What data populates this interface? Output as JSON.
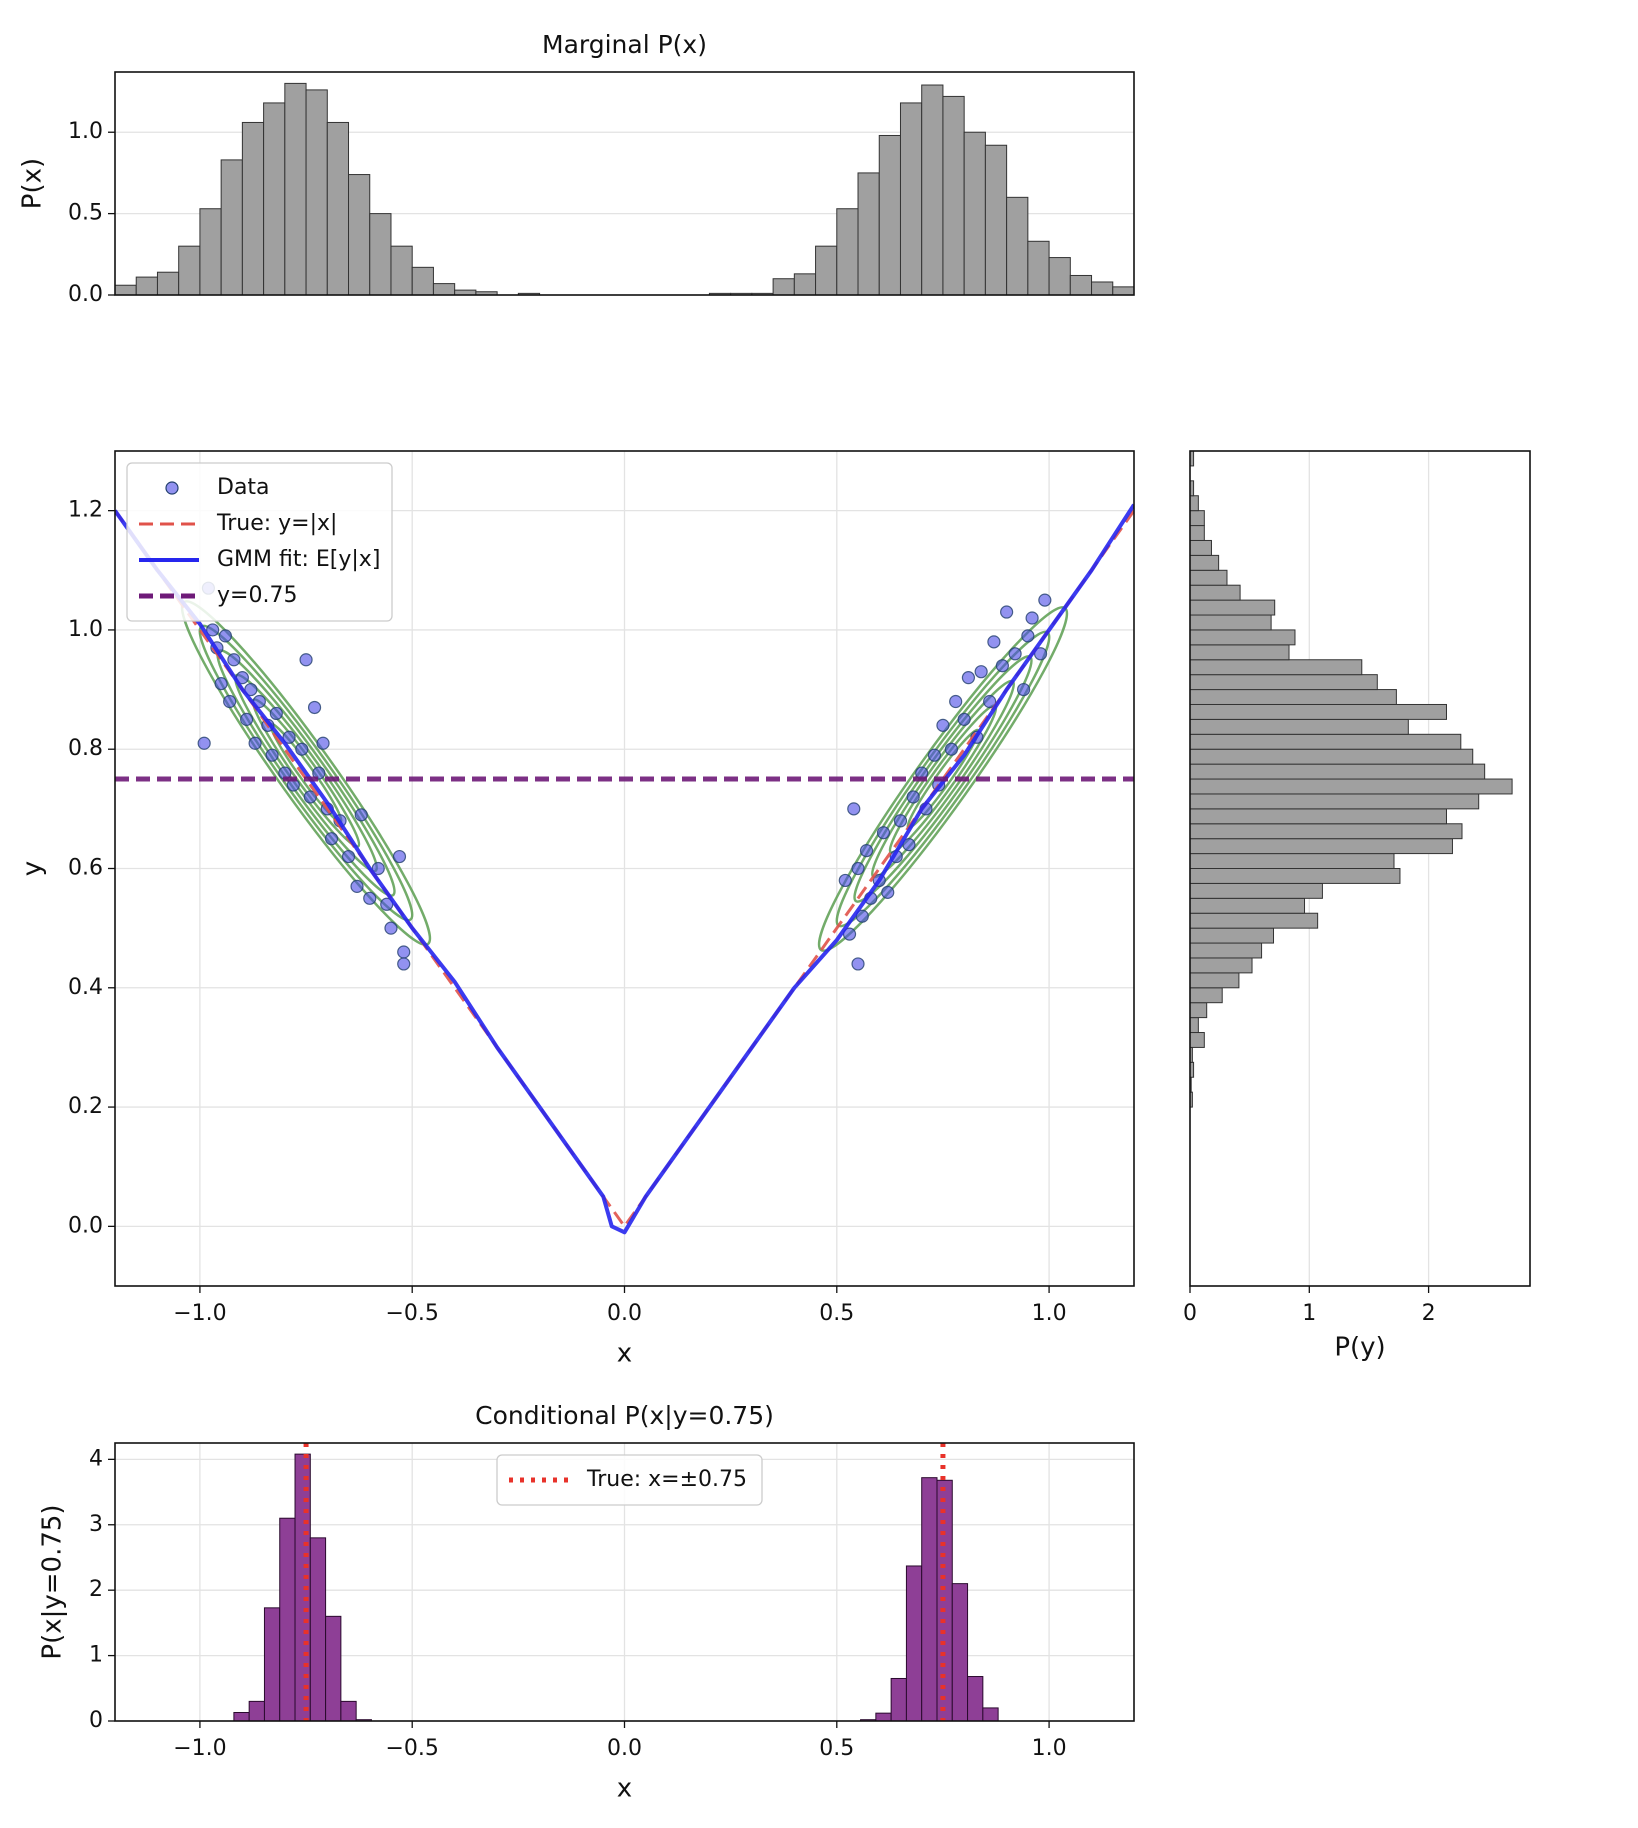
{
  "chart_data": [
    {
      "type": "histogram",
      "title": "Marginal P(x)",
      "ylabel": "P(x)",
      "orientation": "vertical",
      "color": "#a0a0a0",
      "edgecolor": "#333333",
      "grid": true,
      "xlim": [
        -1.2,
        1.2
      ],
      "ylim": [
        0,
        1.37
      ],
      "yticks": [
        {
          "value": 0,
          "label": "0.0"
        },
        {
          "value": 0.5,
          "label": "0.5"
        },
        {
          "value": 1,
          "label": "1.0"
        }
      ],
      "bins": [
        -1.2,
        -1.15,
        -1.1,
        -1.05,
        -1,
        -0.95,
        -0.9,
        -0.85,
        -0.8,
        -0.75,
        -0.7,
        -0.65,
        -0.6,
        -0.55,
        -0.5,
        -0.45,
        -0.4,
        -0.35,
        -0.3,
        -0.25,
        -0.2,
        -0.15,
        -0.1,
        -0.05,
        0,
        0.05,
        0.1,
        0.15,
        0.2,
        0.25,
        0.3,
        0.35,
        0.4,
        0.45,
        0.5,
        0.55,
        0.6,
        0.65,
        0.7,
        0.75,
        0.8,
        0.85,
        0.9,
        0.95,
        1,
        1.05,
        1.1,
        1.15,
        1.2
      ],
      "values": [
        0.06,
        0.11,
        0.14,
        0.3,
        0.53,
        0.83,
        1.06,
        1.18,
        1.3,
        1.26,
        1.06,
        0.74,
        0.5,
        0.3,
        0.17,
        0.07,
        0.03,
        0.02,
        0,
        0.01,
        0,
        0,
        0,
        0,
        0,
        0,
        0,
        0,
        0.01,
        0.01,
        0.01,
        0.1,
        0.13,
        0.3,
        0.53,
        0.75,
        0.98,
        1.18,
        1.29,
        1.22,
        1,
        0.92,
        0.6,
        0.33,
        0.23,
        0.12,
        0.08,
        0.05
      ]
    },
    {
      "type": "scatter",
      "xlabel": "x",
      "ylabel": "y",
      "grid": true,
      "legend": "upper left",
      "xlim": [
        -1.2,
        1.2
      ],
      "ylim": [
        -0.1,
        1.3
      ],
      "xticks": [
        {
          "value": -1,
          "label": "−1.0"
        },
        {
          "value": -0.5,
          "label": "−0.5"
        },
        {
          "value": 0,
          "label": "0.0"
        },
        {
          "value": 0.5,
          "label": "0.5"
        },
        {
          "value": 1,
          "label": "1.0"
        }
      ],
      "yticks": [
        {
          "value": 0,
          "label": "0.0"
        },
        {
          "value": 0.2,
          "label": "0.2"
        },
        {
          "value": 0.4,
          "label": "0.4"
        },
        {
          "value": 0.6,
          "label": "0.6"
        },
        {
          "value": 0.8,
          "label": "0.8"
        },
        {
          "value": 1,
          "label": "1.0"
        },
        {
          "value": 1.2,
          "label": "1.2"
        }
      ],
      "series": [
        {
          "name": "Data",
          "style": "markers",
          "color": "#4a4ae6",
          "x": [
            -0.98,
            -0.97,
            -0.96,
            -0.95,
            -0.94,
            -0.93,
            -0.92,
            -0.9,
            -0.89,
            -0.88,
            -0.87,
            -0.86,
            -0.84,
            -0.83,
            -0.82,
            -0.8,
            -0.79,
            -0.78,
            -0.76,
            -0.75,
            -0.74,
            -0.73,
            -0.72,
            -0.7,
            -0.69,
            -0.67,
            -0.65,
            -0.63,
            -0.62,
            -0.6,
            -0.58,
            -0.56,
            -0.55,
            -0.53,
            -0.52,
            -0.52,
            -0.99,
            -0.71,
            0.53,
            0.54,
            0.55,
            0.55,
            0.56,
            0.57,
            0.58,
            0.6,
            0.61,
            0.62,
            0.64,
            0.65,
            0.67,
            0.68,
            0.7,
            0.71,
            0.73,
            0.74,
            0.75,
            0.77,
            0.78,
            0.8,
            0.81,
            0.83,
            0.84,
            0.86,
            0.87,
            0.89,
            0.9,
            0.92,
            0.94,
            0.95,
            0.96,
            0.98,
            0.99,
            0.52
          ],
          "values": [
            1.07,
            1,
            0.97,
            0.91,
            0.99,
            0.88,
            0.95,
            0.92,
            0.85,
            0.9,
            0.81,
            0.88,
            0.84,
            0.79,
            0.86,
            0.76,
            0.82,
            0.74,
            0.8,
            0.95,
            0.72,
            0.87,
            0.76,
            0.7,
            0.65,
            0.68,
            0.62,
            0.57,
            0.69,
            0.55,
            0.6,
            0.54,
            0.5,
            0.62,
            0.46,
            0.44,
            0.81,
            0.81,
            0.49,
            0.7,
            0.6,
            0.44,
            0.52,
            0.63,
            0.55,
            0.58,
            0.66,
            0.56,
            0.62,
            0.68,
            0.64,
            0.72,
            0.76,
            0.7,
            0.79,
            0.74,
            0.84,
            0.8,
            0.88,
            0.85,
            0.92,
            0.82,
            0.93,
            0.88,
            0.98,
            0.94,
            1.03,
            0.96,
            0.9,
            0.99,
            1.02,
            0.96,
            1.05,
            0.58
          ]
        },
        {
          "name": "True: y=|x|",
          "style": "dashed",
          "linewidth": 3,
          "color": "#e0524a",
          "x": [
            -1.2,
            0,
            1.2
          ],
          "values": [
            1.2,
            0,
            1.2
          ]
        },
        {
          "name": "GMM fit: E[y|x]",
          "style": "solid",
          "linewidth": 4,
          "color": "#2626ee",
          "x": [
            -1.2,
            -1.1,
            -1,
            -0.9,
            -0.8,
            -0.7,
            -0.6,
            -0.5,
            -0.4,
            -0.3,
            -0.2,
            -0.1,
            -0.05,
            -0.03,
            0,
            0.05,
            0.1,
            0.2,
            0.3,
            0.4,
            0.5,
            0.6,
            0.7,
            0.8,
            0.9,
            1,
            1.1,
            1.2
          ],
          "values": [
            1.2,
            1.1,
            1.01,
            0.9,
            0.81,
            0.71,
            0.6,
            0.5,
            0.41,
            0.3,
            0.2,
            0.1,
            0.05,
            0,
            -0.01,
            0.05,
            0.1,
            0.2,
            0.3,
            0.4,
            0.48,
            0.58,
            0.7,
            0.79,
            0.9,
            1,
            1.1,
            1.21
          ]
        },
        {
          "name": "y=0.75",
          "style": "dashed",
          "linewidth": 5,
          "color": "#6e1a78",
          "x": [
            -1.2,
            1.2
          ],
          "values": [
            0.75,
            0.75
          ]
        }
      ]
    },
    {
      "type": "histogram",
      "xlabel": "P(y)",
      "orientation": "horizontal",
      "color": "#a0a0a0",
      "edgecolor": "#333333",
      "grid": true,
      "xlim": [
        0,
        2.85
      ],
      "ylim": [
        -0.1,
        1.3
      ],
      "xticks": [
        0,
        1,
        2
      ],
      "bins": [
        0.2,
        0.225,
        0.25,
        0.275,
        0.3,
        0.325,
        0.35,
        0.375,
        0.4,
        0.425,
        0.45,
        0.475,
        0.5,
        0.525,
        0.55,
        0.575,
        0.6,
        0.625,
        0.65,
        0.675,
        0.7,
        0.725,
        0.75,
        0.775,
        0.8,
        0.825,
        0.85,
        0.875,
        0.9,
        0.925,
        0.95,
        0.975,
        1,
        1.025,
        1.05,
        1.075,
        1.1,
        1.125,
        1.15,
        1.175,
        1.2,
        1.225,
        1.25,
        1.275,
        1.3
      ],
      "values": [
        0.02,
        0.01,
        0.03,
        0.02,
        0.12,
        0.07,
        0.14,
        0.27,
        0.41,
        0.52,
        0.6,
        0.7,
        1.07,
        0.96,
        1.11,
        1.76,
        1.71,
        2.2,
        2.28,
        2.15,
        2.42,
        2.7,
        2.47,
        2.37,
        2.27,
        1.83,
        2.15,
        1.73,
        1.57,
        1.44,
        0.83,
        0.88,
        0.68,
        0.71,
        0.42,
        0.31,
        0.24,
        0.18,
        0.12,
        0.12,
        0.07,
        0.03,
        0,
        0.03
      ]
    },
    {
      "type": "histogram",
      "title": "Conditional P(x|y=0.75)",
      "xlabel": "x",
      "ylabel": "P(x|y=0.75)",
      "orientation": "vertical",
      "color": "#8e3f96",
      "edgecolor": "#2a0a2e",
      "grid": true,
      "legend": "upper center",
      "xlim": [
        -1.2,
        1.2
      ],
      "ylim": [
        0,
        4.25
      ],
      "xticks": [
        {
          "value": -1,
          "label": "−1.0"
        },
        {
          "value": -0.5,
          "label": "−0.5"
        },
        {
          "value": 0,
          "label": "0.0"
        },
        {
          "value": 0.5,
          "label": "0.5"
        },
        {
          "value": 1,
          "label": "1.0"
        }
      ],
      "yticks": [
        0,
        1,
        2,
        3,
        4
      ],
      "bins": [
        -0.92,
        -0.884,
        -0.848,
        -0.812,
        -0.776,
        -0.74,
        -0.704,
        -0.668,
        -0.632,
        -0.596,
        -0.56,
        -0.524,
        -0.488,
        -0.452,
        -0.416,
        -0.38,
        -0.344,
        -0.308,
        -0.272,
        -0.236,
        -0.2,
        -0.164,
        -0.128,
        -0.092,
        -0.056,
        -0.02,
        0.016,
        0.052,
        0.088,
        0.124,
        0.16,
        0.196,
        0.232,
        0.268,
        0.304,
        0.34,
        0.376,
        0.412,
        0.448,
        0.484,
        0.52,
        0.556,
        0.592,
        0.628,
        0.664,
        0.7,
        0.736,
        0.772,
        0.808,
        0.844,
        0.88
      ],
      "values": [
        0.13,
        0.3,
        1.73,
        3.1,
        4.08,
        2.8,
        1.6,
        0.3,
        0.02,
        0,
        0,
        0,
        0,
        0,
        0,
        0,
        0,
        0,
        0,
        0,
        0,
        0,
        0,
        0,
        0,
        0,
        0,
        0,
        0,
        0,
        0,
        0,
        0,
        0,
        0,
        0,
        0,
        0,
        0,
        0,
        0,
        0.02,
        0.12,
        0.65,
        2.37,
        3.72,
        3.68,
        2.1,
        0.68,
        0.2
      ],
      "series": [
        {
          "name": "True: x=±0.75",
          "style": "dotted",
          "linewidth": 5,
          "color": "#e8322a",
          "x": [
            -0.75,
            0.75
          ]
        }
      ]
    }
  ]
}
